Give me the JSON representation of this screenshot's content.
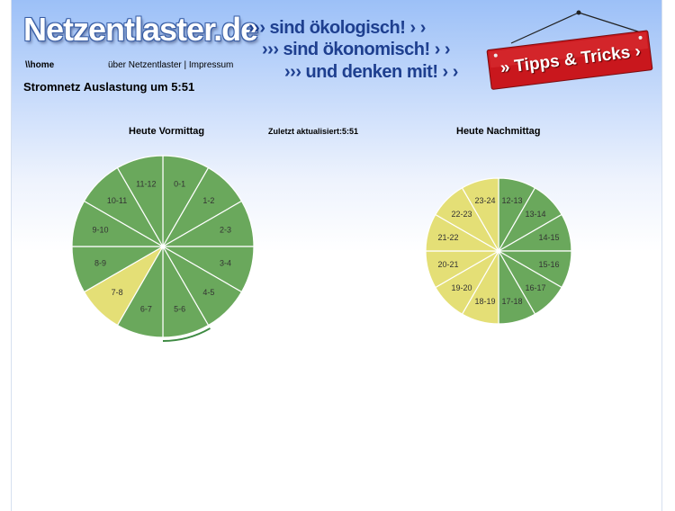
{
  "header": {
    "logo": "Netzentlaster.de",
    "slogans": [
      "››› sind ökologisch! › ›",
      "››› sind ökonomisch! › ›",
      "››› und denken mit! › ›"
    ],
    "tips_button": "» Tipps & Tricks ›"
  },
  "nav": {
    "home": "\\\\home",
    "about": "über Netzentlaster",
    "separator": "|",
    "imprint": "Impressum"
  },
  "subtitle": "Stromnetz Auslastung um 5:51",
  "updated": "Zuletzt aktualisiert:5:51",
  "colors": {
    "green": "#6aa85c",
    "yellow": "#e4df76",
    "brand_blue": "#1e3f8f",
    "sign_red": "#c9171d"
  },
  "chart_data": [
    {
      "type": "pie",
      "title": "Heute Vormittag",
      "segments": [
        {
          "label": "0-1",
          "status": "green"
        },
        {
          "label": "1-2",
          "status": "green"
        },
        {
          "label": "2-3",
          "status": "green"
        },
        {
          "label": "3-4",
          "status": "green"
        },
        {
          "label": "4-5",
          "status": "green"
        },
        {
          "label": "5-6",
          "status": "green"
        },
        {
          "label": "6-7",
          "status": "green"
        },
        {
          "label": "7-8",
          "status": "yellow"
        },
        {
          "label": "8-9",
          "status": "green"
        },
        {
          "label": "9-10",
          "status": "green"
        },
        {
          "label": "10-11",
          "status": "green"
        },
        {
          "label": "11-12",
          "status": "green"
        }
      ],
      "current_segment": "5-6"
    },
    {
      "type": "pie",
      "title": "Heute Nachmittag",
      "segments": [
        {
          "label": "12-13",
          "status": "green"
        },
        {
          "label": "13-14",
          "status": "green"
        },
        {
          "label": "14-15",
          "status": "green"
        },
        {
          "label": "15-16",
          "status": "green"
        },
        {
          "label": "16-17",
          "status": "green"
        },
        {
          "label": "17-18",
          "status": "green"
        },
        {
          "label": "18-19",
          "status": "yellow"
        },
        {
          "label": "19-20",
          "status": "yellow"
        },
        {
          "label": "20-21",
          "status": "yellow"
        },
        {
          "label": "21-22",
          "status": "yellow"
        },
        {
          "label": "22-23",
          "status": "yellow"
        },
        {
          "label": "23-24",
          "status": "yellow"
        }
      ]
    }
  ]
}
